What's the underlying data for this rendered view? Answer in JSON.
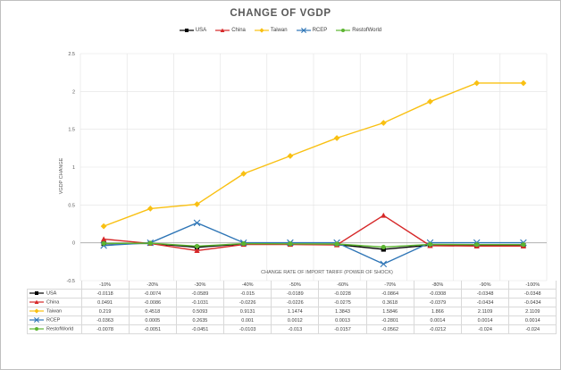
{
  "chart_data": {
    "type": "line",
    "title": "CHANGE OF VGDP",
    "xlabel": "CHANGE RATE OF IMPORT TARIFF (POWER OF SHOCK)",
    "ylabel": "VGDP CHANGE",
    "ylim": [
      -0.5,
      2.5
    ],
    "yticks": [
      "-0.5",
      "0",
      "0.5",
      "1",
      "1.5",
      "2",
      "2.5"
    ],
    "ytick_values": [
      -0.5,
      0,
      0.5,
      1,
      1.5,
      2,
      2.5
    ],
    "grid": true,
    "legend_position": "top-center",
    "categories": [
      "-10%",
      "-20%",
      "-30%",
      "-40%",
      "-50%",
      "-60%",
      "-70%",
      "-80%",
      "-90%",
      "-100%"
    ],
    "series": [
      {
        "name": "USA",
        "color": "#000000",
        "marker": "square",
        "values": [
          -0.0118,
          -0.0074,
          -0.0589,
          -0.015,
          -0.0189,
          -0.0228,
          -0.0864,
          -0.0308,
          -0.0348,
          -0.0348
        ],
        "labels": [
          "-0.0118",
          "-0.0074",
          "-0.0589",
          "-0.015",
          "-0.0189",
          "-0.0228",
          "-0.0864",
          "-0.0308",
          "-0.0348",
          "-0.0348"
        ]
      },
      {
        "name": "China",
        "color": "#d62728",
        "marker": "triangle",
        "values": [
          0.0491,
          -0.0086,
          -0.1031,
          -0.0226,
          -0.0226,
          -0.0275,
          0.3618,
          -0.0379,
          -0.0434,
          -0.0434
        ],
        "labels": [
          "0.0491",
          "-0.0086",
          "-0.1031",
          "-0.0226",
          "-0.0226",
          "-0.0275",
          "0.3618",
          "-0.0379",
          "-0.0434",
          "-0.0434"
        ]
      },
      {
        "name": "Taiwan",
        "color": "#f9c012",
        "marker": "diamond",
        "values": [
          0.219,
          0.4518,
          0.5093,
          0.9131,
          1.1474,
          1.3843,
          1.5846,
          1.866,
          2.1109,
          2.1109
        ],
        "labels": [
          "0.219",
          "0.4518",
          "0.5093",
          "0.9131",
          "1.1474",
          "1.3843",
          "1.5846",
          "1.866",
          "2.1109",
          "2.1109"
        ]
      },
      {
        "name": "RCEP",
        "color": "#2e75b6",
        "marker": "x",
        "values": [
          -0.0363,
          0.0005,
          0.2635,
          0.001,
          0.0012,
          0.0013,
          -0.2801,
          0.0014,
          0.0014,
          0.0014
        ],
        "labels": [
          "-0.0363",
          "0.0005",
          "0.2635",
          "0.001",
          "0.0012",
          "0.0013",
          "-0.2801",
          "0.0014",
          "0.0014",
          "0.0014"
        ]
      },
      {
        "name": "RestofWorld",
        "color": "#5cb531",
        "marker": "circle",
        "values": [
          -0.0078,
          -0.0051,
          -0.0451,
          -0.0103,
          -0.013,
          -0.0157,
          -0.0562,
          -0.0212,
          -0.024,
          -0.024
        ],
        "labels": [
          "-0.0078",
          "-0.0051",
          "-0.0451",
          "-0.0103",
          "-0.013",
          "-0.0157",
          "-0.0562",
          "-0.0212",
          "-0.024",
          "-0.024"
        ]
      }
    ]
  }
}
